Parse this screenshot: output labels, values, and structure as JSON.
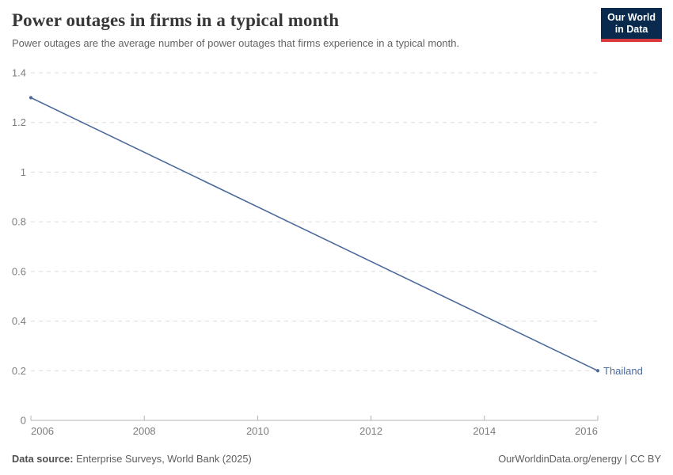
{
  "header": {
    "title": "Power outages in firms in a typical month",
    "subtitle": "Power outages are the average number of power outages that firms experience in a typical month.",
    "logo": {
      "line1": "Our World",
      "line2": "in Data"
    }
  },
  "chart_data": {
    "type": "line",
    "title": "Power outages in firms in a typical month",
    "x": [
      2006,
      2016
    ],
    "series": [
      {
        "name": "Thailand",
        "values": [
          1.3,
          0.2
        ],
        "color": "#4C6A9C"
      }
    ],
    "xlim": [
      2006,
      2016
    ],
    "ylim": [
      0,
      1.4
    ],
    "xticks": [
      2006,
      2008,
      2010,
      2012,
      2014,
      2016
    ],
    "yticks": [
      0,
      0.2,
      0.4,
      0.6,
      0.8,
      1,
      1.2,
      1.4
    ],
    "xlabel": "",
    "ylabel": "",
    "grid": true,
    "grid_style": "dashed",
    "legend": "end-of-line-label"
  },
  "footer": {
    "source_label": "Data source:",
    "source_value": "Enterprise Surveys, World Bank (2025)",
    "license": "OurWorldinData.org/energy | CC BY"
  },
  "colors": {
    "line": "#4C6A9C",
    "grid": "#dcdcdc",
    "axis": "#b3b3b3",
    "tick_label": "#7d7d7d",
    "title": "#373737",
    "subtitle": "#646464",
    "logo_bg": "#0a2a4d",
    "logo_accent": "#d93a3f"
  }
}
